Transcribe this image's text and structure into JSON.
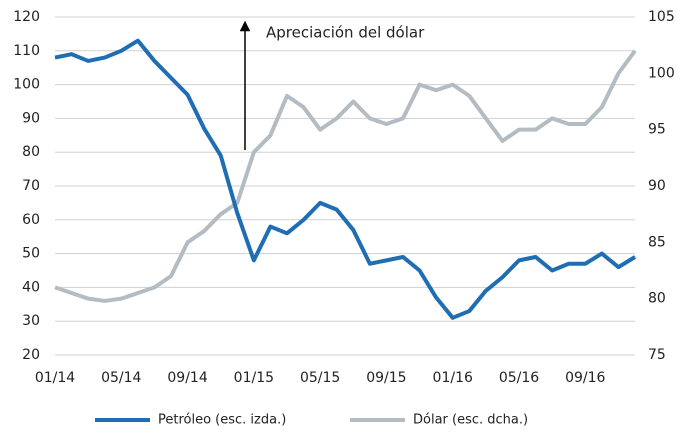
{
  "chart_data": {
    "type": "line",
    "annotation": "Apreciación del dólar",
    "categories": [
      "01/14",
      null,
      null,
      null,
      "05/14",
      null,
      null,
      null,
      "09/14",
      null,
      null,
      null,
      "01/15",
      null,
      null,
      null,
      "05/15",
      null,
      null,
      null,
      "09/15",
      null,
      null,
      null,
      "01/16",
      null,
      null,
      null,
      "05/16",
      null,
      null,
      null,
      "09/16",
      null,
      null,
      null
    ],
    "series": [
      {
        "name": "Petróleo (esc. izda.)",
        "color": "#1f6db3",
        "axis": "y",
        "values": [
          108,
          109,
          107,
          108,
          110,
          113,
          107,
          102,
          97,
          87,
          79,
          62,
          48,
          58,
          56,
          60,
          65,
          63,
          57,
          47,
          48,
          49,
          45,
          37,
          31,
          33,
          39,
          43,
          48,
          49,
          45,
          47,
          47,
          50,
          46,
          49
        ]
      },
      {
        "name": "Dólar (esc. dcha.)",
        "color": "#b3bcc2",
        "axis": "y2",
        "values": [
          81,
          80.5,
          80,
          79.8,
          80,
          80.5,
          81,
          82,
          85,
          86,
          87.5,
          88.5,
          93,
          94.5,
          98,
          97,
          95,
          96,
          97.5,
          96,
          95.5,
          96,
          99,
          98.5,
          99,
          98,
          96,
          94,
          95,
          95,
          96,
          95.5,
          95.5,
          97,
          100,
          102
        ]
      }
    ],
    "ylim": [
      20,
      120
    ],
    "yticks": [
      20,
      30,
      40,
      50,
      60,
      70,
      80,
      90,
      100,
      110,
      120
    ],
    "y2lim": [
      75,
      105
    ],
    "y2ticks": [
      75,
      80,
      85,
      90,
      95,
      100,
      105
    ],
    "grid": true,
    "legend": "bottom"
  }
}
